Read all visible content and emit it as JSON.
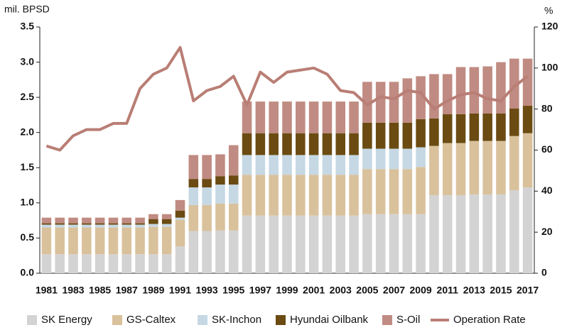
{
  "chart_data": {
    "type": "bar",
    "stacked": true,
    "y_label": "mil. BPSD",
    "y2_label": "%",
    "categories": [
      "1981",
      null,
      "1983",
      null,
      "1985",
      null,
      "1987",
      null,
      "1989",
      null,
      "1991",
      null,
      "1993",
      null,
      "1995",
      null,
      "1997",
      null,
      "1999",
      null,
      "2001",
      null,
      "2003",
      null,
      "2005",
      null,
      "2007",
      null,
      "2009",
      null,
      "2011",
      null,
      "2013",
      null,
      "2015",
      null,
      "2017"
    ],
    "ylim": [
      0,
      3.5
    ],
    "yticks": [
      {
        "value": 0,
        "label": "0.0"
      },
      0.5,
      {
        "value": 1,
        "label": "1.0"
      },
      1.5,
      {
        "value": 2,
        "label": "2.0"
      },
      2.5,
      {
        "value": 3,
        "label": "3.0"
      },
      3.5
    ],
    "y2lim": [
      0,
      120
    ],
    "y2ticks": [
      0,
      20,
      40,
      60,
      80,
      100,
      120
    ],
    "series": [
      {
        "name": "SK Energy",
        "color": "#d3d3d3",
        "values": [
          0.27,
          0.27,
          0.27,
          0.27,
          0.27,
          0.27,
          0.27,
          0.27,
          0.27,
          0.27,
          0.38,
          0.6,
          0.6,
          0.61,
          0.61,
          0.82,
          0.82,
          0.82,
          0.82,
          0.82,
          0.82,
          0.82,
          0.82,
          0.82,
          0.84,
          0.84,
          0.84,
          0.84,
          0.84,
          1.11,
          1.11,
          1.11,
          1.12,
          1.12,
          1.12,
          1.18,
          1.22
        ]
      },
      {
        "name": "GS-Caltex",
        "color": "#d9c19c",
        "values": [
          0.38,
          0.38,
          0.38,
          0.38,
          0.38,
          0.38,
          0.38,
          0.38,
          0.39,
          0.39,
          0.38,
          0.37,
          0.37,
          0.38,
          0.38,
          0.58,
          0.58,
          0.58,
          0.58,
          0.58,
          0.58,
          0.58,
          0.58,
          0.58,
          0.64,
          0.64,
          0.64,
          0.64,
          0.67,
          0.7,
          0.74,
          0.74,
          0.76,
          0.76,
          0.76,
          0.77,
          0.77
        ]
      },
      {
        "name": "SK-Inchon",
        "color": "#c5d8e4",
        "values": [
          0.04,
          0.04,
          0.04,
          0.04,
          0.04,
          0.04,
          0.04,
          0.04,
          0.04,
          0.04,
          0.03,
          0.25,
          0.25,
          0.27,
          0.27,
          0.28,
          0.28,
          0.28,
          0.28,
          0.28,
          0.28,
          0.28,
          0.28,
          0.28,
          0.29,
          0.29,
          0.29,
          0.29,
          0.28,
          0,
          0,
          0,
          0,
          0,
          0,
          0,
          0
        ]
      },
      {
        "name": "Hyundai Oilbank",
        "color": "#6b4b12",
        "values": [
          0.02,
          0.02,
          0.02,
          0.02,
          0.02,
          0.02,
          0.02,
          0.02,
          0.07,
          0.07,
          0.1,
          0.12,
          0.12,
          0.12,
          0.13,
          0.31,
          0.31,
          0.31,
          0.31,
          0.31,
          0.31,
          0.31,
          0.31,
          0.31,
          0.37,
          0.37,
          0.37,
          0.37,
          0.4,
          0.39,
          0.41,
          0.41,
          0.39,
          0.39,
          0.39,
          0.39,
          0.39
        ]
      },
      {
        "name": "S-Oil",
        "color": "#c08b82",
        "values": [
          0.08,
          0.08,
          0.08,
          0.08,
          0.08,
          0.08,
          0.08,
          0.08,
          0.07,
          0.07,
          0.15,
          0.34,
          0.34,
          0.31,
          0.43,
          0.45,
          0.45,
          0.45,
          0.45,
          0.45,
          0.45,
          0.45,
          0.45,
          0.45,
          0.58,
          0.58,
          0.58,
          0.63,
          0.61,
          0.63,
          0.57,
          0.67,
          0.66,
          0.67,
          0.73,
          0.71,
          0.67
        ]
      },
      {
        "name": "Operation Rate",
        "color": "#b97e75",
        "type": "line",
        "axis": "y2",
        "values": [
          62,
          60,
          67,
          70,
          70,
          73,
          73,
          90,
          97,
          100,
          110,
          84,
          89,
          91,
          96,
          82,
          98,
          93,
          98,
          99,
          100,
          97,
          89,
          88,
          82,
          86,
          85,
          89,
          88,
          80,
          84,
          87,
          88,
          85,
          84,
          91,
          96
        ]
      }
    ]
  }
}
